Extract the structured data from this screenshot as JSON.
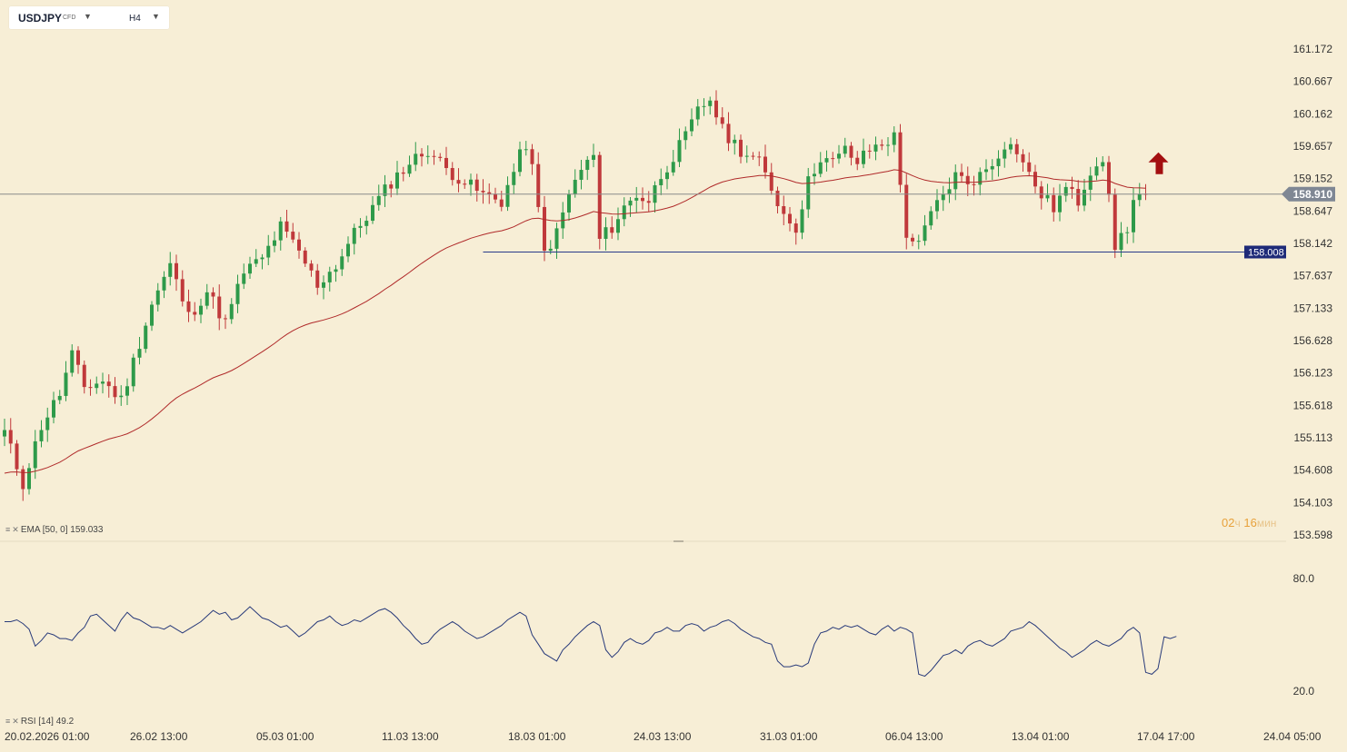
{
  "toolbar": {
    "symbol": "USDJPY",
    "instrument_type": "CFD",
    "timeframe": "H4",
    "symbol_caret_icon": "caret-down-icon",
    "timeframe_caret_icon": "caret-down-icon"
  },
  "indicators": {
    "ema_label": "EMA [50, 0] 159.033",
    "rsi_label": "RSI [14] 49.2",
    "icons": [
      "settings-lines-icon",
      "close-x-icon"
    ]
  },
  "timer": {
    "hours": "02",
    "hours_unit": "ч",
    "minutes": "16",
    "minutes_unit": "мин"
  },
  "colors": {
    "background": "#f7eed6",
    "up_candle": "#2e9a4a",
    "down_candle": "#c0393b",
    "ema_line": "#b02a2a",
    "rsi_line": "#283a7a",
    "support_line": "#283a8a",
    "current_price_line": "#8a8a8a",
    "current_price_badge": "#7f8794",
    "support_badge": "#1e2a78",
    "signal_arrow": "#a30f10"
  },
  "chart_data": [
    {
      "type": "candlestick",
      "symbol": "USDJPY",
      "timeframe": "H4",
      "y_ticks": [
        161.172,
        160.667,
        160.162,
        159.657,
        159.152,
        158.647,
        158.142,
        157.637,
        157.133,
        156.628,
        156.123,
        155.618,
        155.113,
        154.608,
        154.103,
        153.598
      ],
      "y_tick_labels": [
        "161.172",
        "160.667",
        "160.162",
        "159.657",
        "159.152",
        "158.647",
        "158.142",
        "157.637",
        "157.133",
        "156.628",
        "156.123",
        "155.618",
        "155.113",
        "154.608",
        "154.103",
        "153.598"
      ],
      "x_tick_labels": [
        "20.02.2026 01:00",
        "26.02 13:00",
        "05.03 01:00",
        "11.03 13:00",
        "18.03 01:00",
        "24.03 13:00",
        "31.03 01:00",
        "06.04 13:00",
        "13.04 01:00",
        "17.04 17:00",
        "24.04 05:00"
      ],
      "current_price": 158.91,
      "current_price_label": "158.910",
      "horizontal_line": {
        "value": 158.008,
        "label": "158.008",
        "from_x": "18.03 01:00"
      },
      "signal": {
        "type": "up-arrow-icon",
        "near": "17.04 17:00"
      },
      "close_path": [
        [
          0,
          155.2
        ],
        [
          3,
          154.4
        ],
        [
          6,
          155.3
        ],
        [
          9,
          155.8
        ],
        [
          11,
          156.4
        ],
        [
          13,
          155.9
        ],
        [
          16,
          156.0
        ],
        [
          19,
          155.7
        ],
        [
          21,
          156.3
        ],
        [
          24,
          157.2
        ],
        [
          27,
          157.8
        ],
        [
          30,
          157.0
        ],
        [
          33,
          157.4
        ],
        [
          36,
          156.9
        ],
        [
          39,
          157.7
        ],
        [
          42,
          157.9
        ],
        [
          45,
          158.4
        ],
        [
          48,
          158.0
        ],
        [
          51,
          157.5
        ],
        [
          54,
          157.8
        ],
        [
          57,
          158.3
        ],
        [
          60,
          158.7
        ],
        [
          63,
          159.1
        ],
        [
          66,
          159.4
        ],
        [
          69,
          159.6
        ],
        [
          72,
          159.3
        ],
        [
          75,
          159.1
        ],
        [
          78,
          158.9
        ],
        [
          81,
          158.8
        ],
        [
          84,
          159.5
        ],
        [
          85,
          159.7
        ],
        [
          86,
          159.3
        ],
        [
          88,
          158.0
        ],
        [
          90,
          158.3
        ],
        [
          92,
          158.9
        ],
        [
          94,
          159.3
        ],
        [
          96,
          159.5
        ],
        [
          97,
          158.2
        ],
        [
          99,
          158.4
        ],
        [
          101,
          158.7
        ],
        [
          103,
          158.9
        ],
        [
          105,
          158.8
        ],
        [
          107,
          159.2
        ],
        [
          109,
          159.5
        ],
        [
          111,
          159.8
        ],
        [
          113,
          160.2
        ],
        [
          115,
          160.4
        ],
        [
          117,
          159.9
        ],
        [
          120,
          159.6
        ],
        [
          123,
          159.4
        ],
        [
          125,
          159.0
        ],
        [
          127,
          158.6
        ],
        [
          129,
          158.4
        ],
        [
          131,
          159.1
        ],
        [
          133,
          159.5
        ],
        [
          135,
          159.4
        ],
        [
          137,
          159.6
        ],
        [
          139,
          159.4
        ],
        [
          141,
          159.6
        ],
        [
          143,
          159.7
        ],
        [
          145,
          159.8
        ],
        [
          147,
          158.3
        ],
        [
          149,
          158.1
        ],
        [
          151,
          158.6
        ],
        [
          153,
          158.9
        ],
        [
          155,
          159.2
        ],
        [
          157,
          159.1
        ],
        [
          159,
          159.2
        ],
        [
          161,
          159.4
        ],
        [
          163,
          159.7
        ],
        [
          165,
          159.6
        ],
        [
          167,
          159.2
        ],
        [
          169,
          158.9
        ],
        [
          171,
          158.7
        ],
        [
          173,
          159.0
        ],
        [
          175,
          158.8
        ],
        [
          177,
          159.3
        ],
        [
          179,
          159.5
        ],
        [
          181,
          158.1
        ],
        [
          183,
          158.4
        ],
        [
          184,
          158.8
        ],
        [
          185,
          158.9
        ],
        [
          186,
          158.91
        ]
      ],
      "ema": {
        "name": "EMA [50, 0]",
        "last_value": 159.033
      }
    },
    {
      "type": "line",
      "title": "RSI [14] 49.2",
      "y_ticks": [
        80.0,
        20.0
      ],
      "y_tick_labels": [
        "80.0",
        "20.0"
      ],
      "last_value": 49.2,
      "series": [
        {
          "name": "RSI [14]",
          "values": [
            57,
            57,
            58,
            56,
            53,
            44,
            47,
            51,
            50,
            48,
            48,
            47,
            51,
            54,
            60,
            61,
            58,
            55,
            52,
            58,
            62,
            59,
            58,
            56,
            54,
            54,
            53,
            55,
            53,
            51,
            53,
            55,
            57,
            60,
            63,
            61,
            62,
            58,
            59,
            62,
            65,
            62,
            59,
            58,
            56,
            54,
            55,
            52,
            49,
            51,
            54,
            57,
            58,
            60,
            57,
            55,
            56,
            58,
            57,
            59,
            61,
            63,
            64,
            62,
            59,
            55,
            52,
            48,
            45,
            46,
            50,
            53,
            55,
            57,
            55,
            52,
            50,
            48,
            49,
            51,
            53,
            55,
            58,
            60,
            62,
            60,
            50,
            45,
            40,
            38,
            36,
            42,
            45,
            49,
            52,
            55,
            57,
            55,
            42,
            38,
            41,
            46,
            48,
            46,
            45,
            47,
            51,
            52,
            54,
            52,
            52,
            55,
            56,
            55,
            52,
            54,
            55,
            57,
            58,
            56,
            53,
            51,
            49,
            48,
            46,
            45,
            36,
            33,
            33,
            34,
            33,
            35,
            45,
            51,
            52,
            54,
            53,
            55,
            54,
            55,
            53,
            51,
            50,
            53,
            55,
            52,
            54,
            53,
            51,
            29,
            28,
            31,
            35,
            39,
            40,
            42,
            40,
            44,
            46,
            47,
            45,
            44,
            46,
            48,
            52,
            53,
            54,
            57,
            55,
            52,
            49,
            46,
            43,
            41,
            38,
            40,
            42,
            45,
            47,
            45,
            44,
            46,
            48,
            52,
            54,
            51,
            30,
            29,
            32,
            49,
            48,
            49.2
          ]
        }
      ]
    }
  ]
}
